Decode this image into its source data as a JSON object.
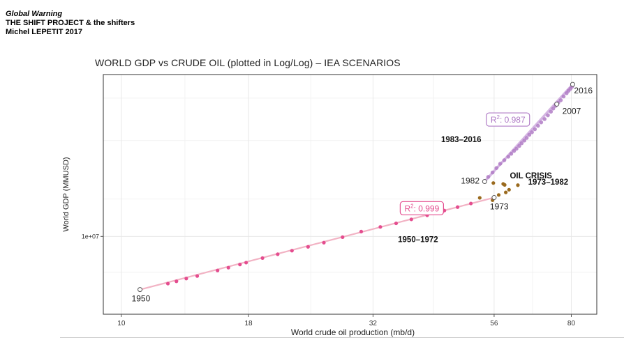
{
  "header": {
    "line1": "Global Warning",
    "line2": "THE SHIFT PROJECT & the shifters",
    "line3": "Michel LEPETIT 2017"
  },
  "colors": {
    "pink": "#e44d8f",
    "pink_line": "#f2b3c4",
    "purple": "#b07cc6",
    "purple_light": "#d4b5e2",
    "brown": "#9a6a1e",
    "grid": "#e8e8e8",
    "axis": "#555555"
  },
  "chart_data": {
    "type": "scatter",
    "title": "WORLD GDP vs CRUDE OIL (plotted in Log/Log) – IEA SCENARIOS",
    "xlabel": "World crude oil production (mb/d)",
    "ylabel": "World GDP (MMUSD)",
    "x_scale": "log",
    "y_scale": "log",
    "xlim": [
      9.2,
      90
    ],
    "ylim": [
      6500000,
      24500000
    ],
    "x_ticks": [
      10,
      18,
      32,
      56,
      80
    ],
    "x_tick_labels": [
      "10",
      "18",
      "32",
      "56",
      "80"
    ],
    "y_ticks": [
      10000000
    ],
    "y_tick_labels": [
      "1e+07"
    ],
    "series": [
      {
        "name": "1950-1972",
        "color": "#e44d8f",
        "points": [
          {
            "x": 10.9,
            "y": 7450000
          },
          {
            "x": 12.4,
            "y": 7700000
          },
          {
            "x": 12.9,
            "y": 7800000
          },
          {
            "x": 13.5,
            "y": 7920000
          },
          {
            "x": 14.2,
            "y": 8030000
          },
          {
            "x": 15.6,
            "y": 8280000
          },
          {
            "x": 16.4,
            "y": 8410000
          },
          {
            "x": 17.3,
            "y": 8560000
          },
          {
            "x": 17.8,
            "y": 8650000
          },
          {
            "x": 19.2,
            "y": 8870000
          },
          {
            "x": 20.6,
            "y": 9060000
          },
          {
            "x": 22.0,
            "y": 9240000
          },
          {
            "x": 23.7,
            "y": 9440000
          },
          {
            "x": 25.5,
            "y": 9660000
          },
          {
            "x": 27.8,
            "y": 9960000
          },
          {
            "x": 30.3,
            "y": 10270000
          },
          {
            "x": 33.1,
            "y": 10540000
          },
          {
            "x": 35.6,
            "y": 10750000
          },
          {
            "x": 38.2,
            "y": 10990000
          },
          {
            "x": 41.1,
            "y": 11240000
          },
          {
            "x": 44.5,
            "y": 11540000
          },
          {
            "x": 47.3,
            "y": 11760000
          },
          {
            "x": 50.3,
            "y": 12000000
          }
        ]
      },
      {
        "name": "1973-1982 OIL CRISIS",
        "color": "#9a6a1e",
        "points": [
          {
            "x": 52.4,
            "y": 12380000
          },
          {
            "x": 55.6,
            "y": 12220000
          },
          {
            "x": 57.2,
            "y": 12580000
          },
          {
            "x": 59.1,
            "y": 12760000
          },
          {
            "x": 60.0,
            "y": 12950000
          },
          {
            "x": 58.8,
            "y": 13300000
          },
          {
            "x": 62.5,
            "y": 13280000
          },
          {
            "x": 55.8,
            "y": 13440000
          },
          {
            "x": 58.4,
            "y": 13370000
          }
        ]
      },
      {
        "name": "1983-2016",
        "color": "#b07cc6",
        "points": [
          {
            "x": 53.6,
            "y": 13550000
          },
          {
            "x": 54.5,
            "y": 13900000
          },
          {
            "x": 55.6,
            "y": 14250000
          },
          {
            "x": 56.6,
            "y": 14600000
          },
          {
            "x": 57.6,
            "y": 14950000
          },
          {
            "x": 58.7,
            "y": 15250000
          },
          {
            "x": 59.8,
            "y": 15550000
          },
          {
            "x": 60.6,
            "y": 15800000
          },
          {
            "x": 61.4,
            "y": 16050000
          },
          {
            "x": 62.1,
            "y": 16250000
          },
          {
            "x": 62.9,
            "y": 16500000
          },
          {
            "x": 63.6,
            "y": 16750000
          },
          {
            "x": 64.4,
            "y": 17000000
          },
          {
            "x": 65.1,
            "y": 17250000
          },
          {
            "x": 65.9,
            "y": 17550000
          },
          {
            "x": 66.7,
            "y": 17800000
          },
          {
            "x": 67.6,
            "y": 18100000
          },
          {
            "x": 68.6,
            "y": 18450000
          },
          {
            "x": 69.6,
            "y": 18800000
          },
          {
            "x": 70.7,
            "y": 19150000
          },
          {
            "x": 71.8,
            "y": 19550000
          },
          {
            "x": 72.8,
            "y": 19950000
          },
          {
            "x": 73.6,
            "y": 20300000
          },
          {
            "x": 74.4,
            "y": 20600000
          },
          {
            "x": 75.3,
            "y": 20950000
          },
          {
            "x": 76.2,
            "y": 21250000
          },
          {
            "x": 77.2,
            "y": 21700000
          },
          {
            "x": 78.3,
            "y": 22100000
          },
          {
            "x": 79.0,
            "y": 22400000
          },
          {
            "x": 79.7,
            "y": 22650000
          },
          {
            "x": 80.3,
            "y": 22900000
          }
        ]
      }
    ],
    "trend_lines": [
      {
        "name": "trend 1950-1973",
        "color": "#f2b3c4",
        "from": {
          "x": 10.9,
          "y": 7450000
        },
        "to": {
          "x": 56.0,
          "y": 12400000
        }
      },
      {
        "name": "trend 1983-2016",
        "color": "#d4b5e2",
        "from": {
          "x": 53.6,
          "y": 13550000
        },
        "to": {
          "x": 80.5,
          "y": 23200000
        }
      }
    ],
    "hollow_points": [
      {
        "label": "1950",
        "x": 10.9,
        "y": 7450000,
        "color": "#555555"
      },
      {
        "label": "1973",
        "x": 56.0,
        "y": 12400000,
        "color": "#555555"
      },
      {
        "label": "1982",
        "x": 53.6,
        "y": 13550000,
        "color": "#555555"
      },
      {
        "label": "2007",
        "x": 74.8,
        "y": 20800000,
        "color": "#555555"
      },
      {
        "label": "2016",
        "x": 80.5,
        "y": 23200000,
        "color": "#555555"
      }
    ],
    "annotations": [
      {
        "text": "1950–1972",
        "x": 39.4,
        "y": 9680000,
        "weight": "bold",
        "color": "#111111"
      },
      {
        "text": "1983–2016",
        "x": 48.1,
        "y": 16850000,
        "weight": "bold",
        "color": "#111111"
      },
      {
        "text": "OIL CRISIS",
        "x": 66.4,
        "y": 13780000,
        "weight": "bold",
        "color": "#111111"
      },
      {
        "text": "1973–1982",
        "x": 71.9,
        "y": 13320000,
        "weight": "bold",
        "color": "#111111"
      }
    ],
    "r2_boxes": [
      {
        "label": "R",
        "sup": "2",
        "value": ": 0.999",
        "x": 40.1,
        "y": 11690000,
        "color": "#e44d8f"
      },
      {
        "label": "R",
        "sup": "2",
        "value": ": 0.987",
        "x": 59.7,
        "y": 19100000,
        "color": "#b07cc6"
      }
    ]
  }
}
